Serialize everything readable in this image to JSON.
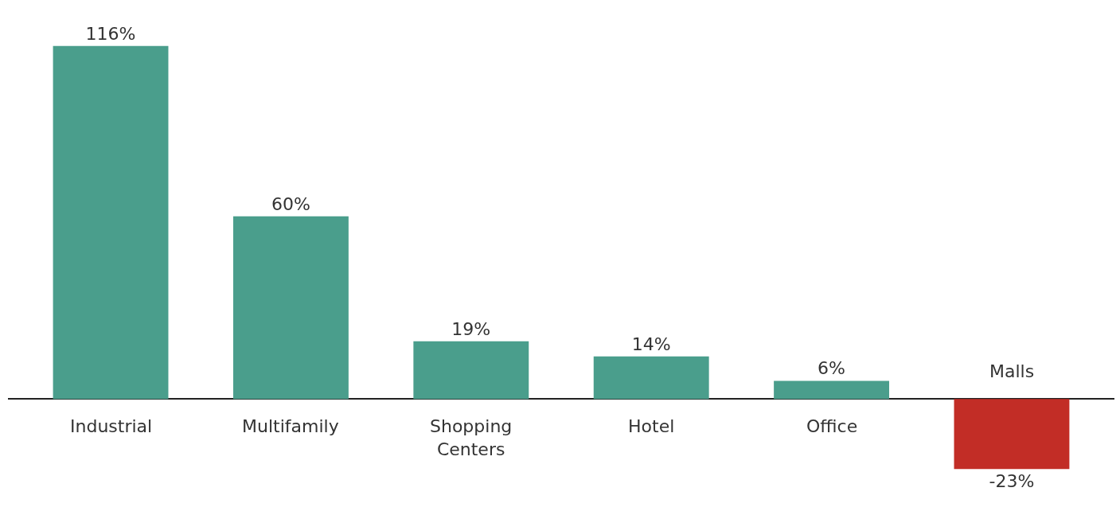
{
  "chart_data": {
    "type": "bar",
    "categories": [
      "Industrial",
      "Multifamily",
      "Shopping Centers",
      "Hotel",
      "Office",
      "Malls"
    ],
    "values": [
      116,
      60,
      19,
      14,
      6,
      -23
    ],
    "value_labels": [
      "116%",
      "60%",
      "19%",
      "14%",
      "6%",
      "-23%"
    ],
    "colors": [
      "#4a9e8c",
      "#4a9e8c",
      "#4a9e8c",
      "#4a9e8c",
      "#4a9e8c",
      "#c22d26"
    ]
  }
}
